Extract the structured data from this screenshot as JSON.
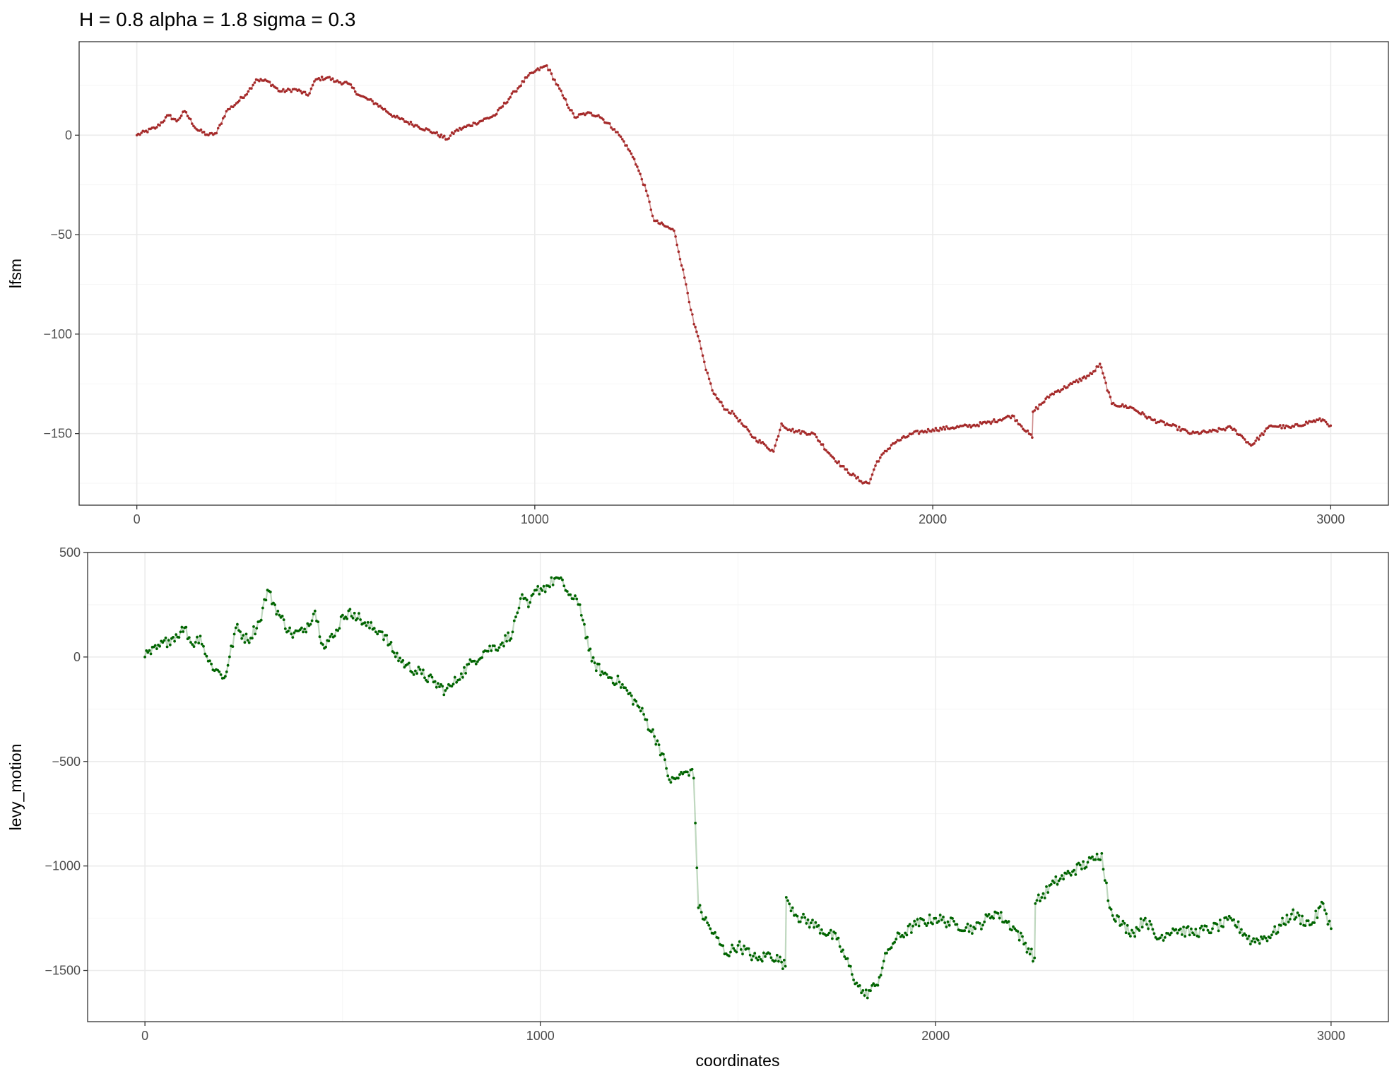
{
  "title": "H =  0.8 alpha =  1.8 sigma = 0.3",
  "xlabel": "coordinates",
  "chart_data": [
    {
      "type": "line",
      "ylabel": "lfsm",
      "color": "#a52a2a",
      "x_ticks": [
        0,
        1000,
        2000,
        3000
      ],
      "y_ticks": [
        0,
        -50,
        -100,
        -150
      ],
      "xlim": [
        -145,
        3145
      ],
      "ylim": [
        -186,
        47
      ],
      "grid": true,
      "series": [
        {
          "x": [
            0,
            50,
            80,
            100,
            120,
            150,
            180,
            200,
            225,
            250,
            280,
            300,
            330,
            360,
            400,
            430,
            450,
            480,
            500,
            530,
            560,
            600,
            650,
            700,
            750,
            780,
            800,
            850,
            900,
            950,
            980,
            1000,
            1030,
            1070,
            1100,
            1130,
            1160,
            1200,
            1220,
            1250,
            1280,
            1300,
            1330,
            1350,
            1380,
            1400,
            1410,
            1430,
            1450,
            1480,
            1500,
            1520,
            1550,
            1580,
            1600,
            1620,
            1640,
            1660,
            1700,
            1740,
            1780,
            1820,
            1840,
            1860,
            1900,
            1950,
            2000,
            2050,
            2100,
            2150,
            2200,
            2250,
            2252,
            2300,
            2350,
            2400,
            2420,
            2450,
            2500,
            2550,
            2600,
            2650,
            2700,
            2750,
            2780,
            2800,
            2850,
            2900,
            2950,
            2980,
            3000
          ],
          "y": [
            0,
            4,
            10,
            7,
            12,
            3,
            0,
            1,
            12,
            16,
            22,
            28,
            27,
            22,
            23,
            20,
            28,
            29,
            27,
            26,
            20,
            16,
            9,
            5,
            1,
            -2,
            2,
            6,
            10,
            22,
            29,
            32,
            35,
            20,
            9,
            11,
            10,
            3,
            -2,
            -12,
            -28,
            -43,
            -46,
            -48,
            -75,
            -95,
            -101,
            -118,
            -130,
            -138,
            -140,
            -145,
            -152,
            -156,
            -159,
            -145,
            -148,
            -149,
            -150,
            -160,
            -168,
            -174,
            -175,
            -164,
            -155,
            -150,
            -148,
            -147,
            -146,
            -144,
            -141,
            -152,
            -139,
            -130,
            -125,
            -120,
            -115,
            -135,
            -137,
            -143,
            -146,
            -150,
            -149,
            -147,
            -152,
            -156,
            -146,
            -147,
            -144,
            -143,
            -146
          ]
        }
      ]
    },
    {
      "type": "scatter",
      "ylabel": "levy_motion",
      "color": "#006400",
      "x_ticks": [
        0,
        1000,
        2000,
        3000
      ],
      "y_ticks": [
        500,
        0,
        -500,
        -1000,
        -1500
      ],
      "xlim": [
        -145,
        3145
      ],
      "ylim": [
        -1745,
        500
      ],
      "grid": true,
      "series": [
        {
          "x": [
            0,
            30,
            60,
            90,
            100,
            120,
            140,
            160,
            180,
            200,
            210,
            230,
            260,
            290,
            310,
            340,
            370,
            400,
            430,
            450,
            480,
            500,
            530,
            560,
            600,
            630,
            660,
            700,
            730,
            760,
            780,
            800,
            830,
            860,
            900,
            930,
            950,
            970,
            990,
            1020,
            1040,
            1060,
            1080,
            1100,
            1130,
            1160,
            1200,
            1250,
            1300,
            1330,
            1360,
            1380,
            1388,
            1400,
            1430,
            1470,
            1500,
            1550,
            1580,
            1610,
            1620,
            1622,
            1650,
            1700,
            1750,
            1800,
            1820,
            1850,
            1880,
            1900,
            1950,
            2000,
            2050,
            2100,
            2150,
            2200,
            2250,
            2252,
            2300,
            2350,
            2400,
            2420,
            2440,
            2470,
            2500,
            2530,
            2560,
            2600,
            2650,
            2700,
            2750,
            2800,
            2850,
            2900,
            2950,
            2980,
            3000
          ],
          "y": [
            0,
            40,
            80,
            120,
            140,
            60,
            100,
            -20,
            -60,
            -100,
            -40,
            140,
            80,
            170,
            320,
            200,
            110,
            120,
            220,
            60,
            100,
            200,
            210,
            150,
            120,
            20,
            -40,
            -80,
            -120,
            -160,
            -130,
            -80,
            -20,
            30,
            60,
            120,
            280,
            240,
            320,
            340,
            380,
            340,
            280,
            250,
            -20,
            -80,
            -120,
            -240,
            -420,
            -600,
            -560,
            -540,
            -580,
            -1200,
            -1300,
            -1420,
            -1380,
            -1450,
            -1420,
            -1460,
            -1480,
            -1150,
            -1240,
            -1290,
            -1350,
            -1560,
            -1620,
            -1570,
            -1400,
            -1350,
            -1280,
            -1250,
            -1280,
            -1300,
            -1220,
            -1300,
            -1440,
            -1180,
            -1080,
            -1020,
            -970,
            -940,
            -1200,
            -1280,
            -1320,
            -1250,
            -1350,
            -1300,
            -1320,
            -1300,
            -1260,
            -1360,
            -1330,
            -1230,
            -1280,
            -1180,
            -1300
          ]
        }
      ]
    }
  ]
}
